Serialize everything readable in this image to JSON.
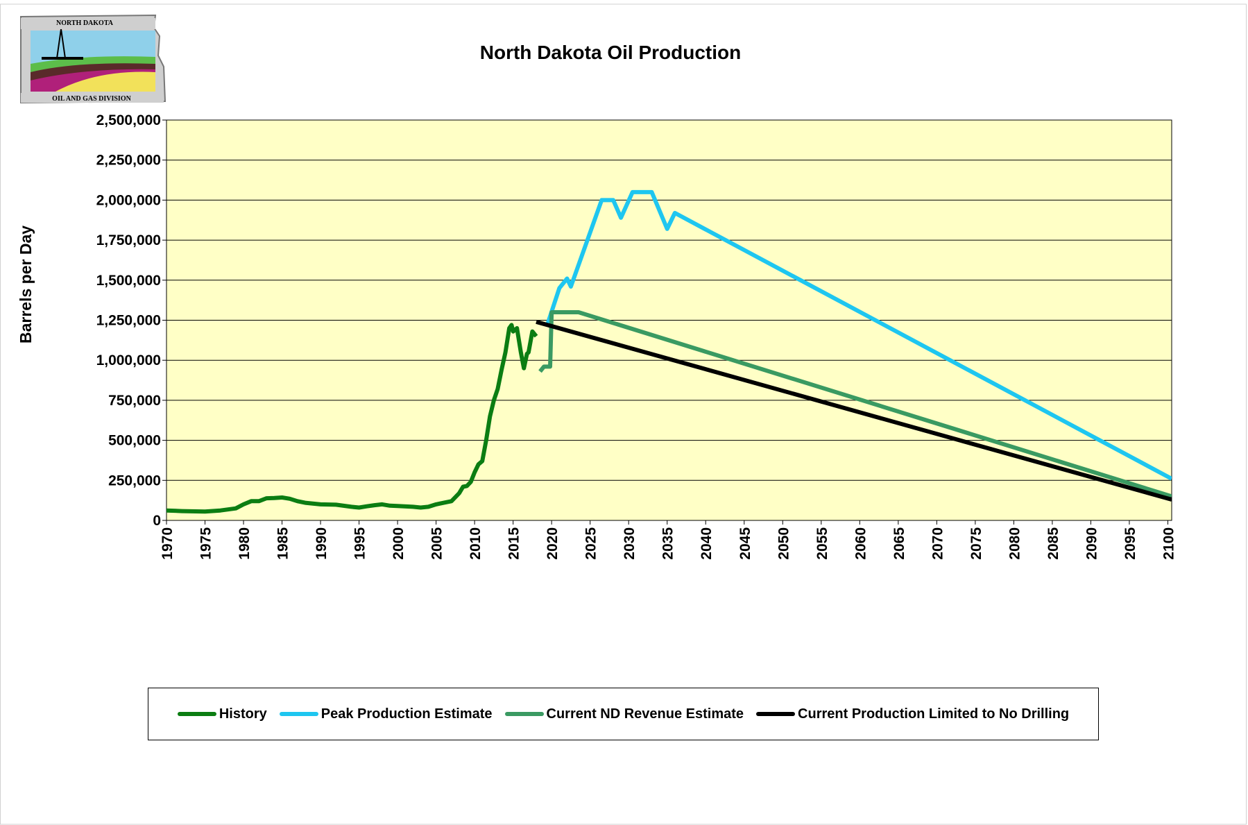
{
  "logo": {
    "top": "NORTH DAKOTA",
    "bottom": "OIL AND GAS DIVISION"
  },
  "chart_data": {
    "type": "line",
    "title": "North Dakota Oil Production",
    "y_label": "Barrels per Day",
    "xlim": [
      1970,
      2100.5
    ],
    "ylim": [
      0,
      2500000
    ],
    "xticks": [
      1970,
      1975,
      1980,
      1985,
      1990,
      1995,
      2000,
      2005,
      2010,
      2015,
      2020,
      2025,
      2030,
      2035,
      2040,
      2045,
      2050,
      2055,
      2060,
      2065,
      2070,
      2075,
      2080,
      2085,
      2090,
      2095,
      2100
    ],
    "yticks": [
      {
        "value": 0,
        "label": "0"
      },
      {
        "value": 250000,
        "label": "250,000"
      },
      {
        "value": 500000,
        "label": "500,000"
      },
      {
        "value": 750000,
        "label": "750,000"
      },
      {
        "value": 1000000,
        "label": "1,000,000"
      },
      {
        "value": 1250000,
        "label": "1,250,000"
      },
      {
        "value": 1500000,
        "label": "1,500,000"
      },
      {
        "value": 1750000,
        "label": "1,750,000"
      },
      {
        "value": 2000000,
        "label": "2,000,000"
      },
      {
        "value": 2250000,
        "label": "2,250,000"
      },
      {
        "value": 2500000,
        "label": "2,500,000"
      }
    ],
    "grid": true,
    "legend": "bottom",
    "series": [
      {
        "name": "History",
        "color": "#0b7d12",
        "x": [
          1970,
          1972,
          1975,
          1977,
          1979,
          1980,
          1981,
          1982,
          1983,
          1984,
          1985,
          1986,
          1987,
          1988,
          1990,
          1992,
          1994,
          1995,
          1996,
          1997,
          1998,
          1999,
          2000,
          2002,
          2003,
          2004,
          2005,
          2006,
          2007,
          2008,
          2008.5,
          2009,
          2009.5,
          2010,
          2010.5,
          2011,
          2011.5,
          2012,
          2012.5,
          2013,
          2013.5,
          2014,
          2014.5,
          2014.8,
          2015,
          2015.5,
          2016,
          2016.4,
          2016.8,
          2017,
          2017.5,
          2018
        ],
        "values": [
          62000,
          58000,
          55000,
          62000,
          75000,
          100000,
          120000,
          120000,
          138000,
          140000,
          143000,
          135000,
          120000,
          110000,
          100000,
          98000,
          85000,
          80000,
          88000,
          95000,
          100000,
          92000,
          90000,
          85000,
          80000,
          85000,
          100000,
          110000,
          120000,
          170000,
          210000,
          215000,
          240000,
          300000,
          350000,
          370000,
          500000,
          650000,
          750000,
          820000,
          940000,
          1050000,
          1200000,
          1220000,
          1180000,
          1200000,
          1050000,
          950000,
          1040000,
          1050000,
          1180000,
          1150000
        ]
      },
      {
        "name": "Peak Production Estimate",
        "color": "#1ec6f0",
        "x": [
          2019.5,
          2021,
          2022,
          2022.5,
          2026.5,
          2028,
          2029,
          2030.5,
          2033,
          2035,
          2036,
          2100.5
        ],
        "values": [
          1230000,
          1450000,
          1510000,
          1460000,
          2000000,
          2000000,
          1890000,
          2050000,
          2050000,
          1820000,
          1920000,
          260000
        ]
      },
      {
        "name": "Current ND Revenue Estimate",
        "color": "#3a9a62",
        "x": [
          2018.5,
          2019,
          2019.8,
          2020,
          2023.5,
          2100.5
        ],
        "values": [
          930000,
          960000,
          960000,
          1300000,
          1300000,
          150000
        ]
      },
      {
        "name": "Current Production Limited to No Drilling",
        "color": "#000000",
        "x": [
          2018,
          2100.5
        ],
        "values": [
          1240000,
          130000
        ]
      }
    ]
  }
}
